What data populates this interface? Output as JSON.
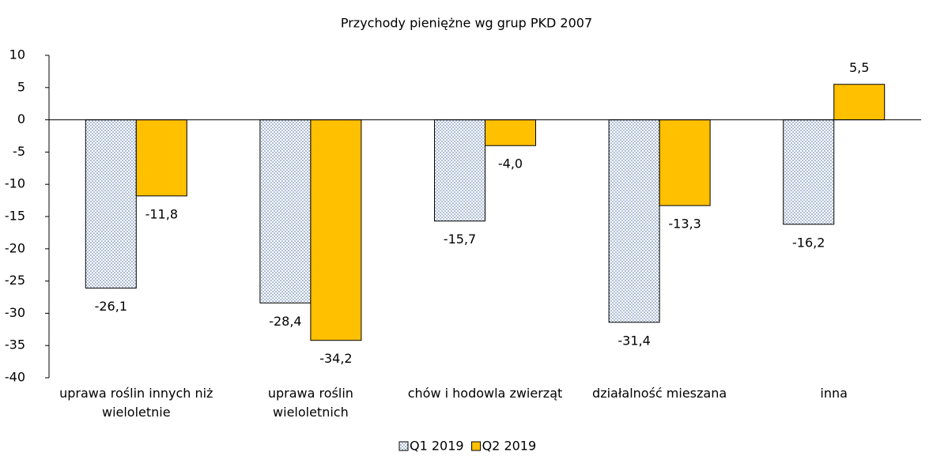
{
  "chart_data": {
    "type": "bar",
    "title": "Przychody pieniężne wg grup PKD 2007",
    "categories": [
      "uprawa roślin innych niż wieloletnie",
      "uprawa roślin wieloletnich",
      "chów i hodowla zwierząt",
      "działalność mieszana",
      "inna"
    ],
    "series": [
      {
        "name": "Q1 2019",
        "color": "#4a6fa5",
        "values": [
          -26.1,
          -28.4,
          -15.7,
          -31.4,
          -16.2
        ],
        "value_labels": [
          "-26,1",
          "-28,4",
          "-15,7",
          "-31,4",
          "-16,2"
        ]
      },
      {
        "name": "Q2 2019",
        "color": "#ffc000",
        "values": [
          -11.8,
          -34.2,
          -4.0,
          -13.3,
          5.5
        ],
        "value_labels": [
          "-11,8",
          "-34,2",
          "-4,0",
          "-13,3",
          "5,5"
        ]
      }
    ],
    "ylim": [
      -40,
      10
    ],
    "yticks": [
      10,
      5,
      0,
      -5,
      -10,
      -15,
      -20,
      -25,
      -30,
      -35,
      -40
    ],
    "legend": "bottom"
  }
}
